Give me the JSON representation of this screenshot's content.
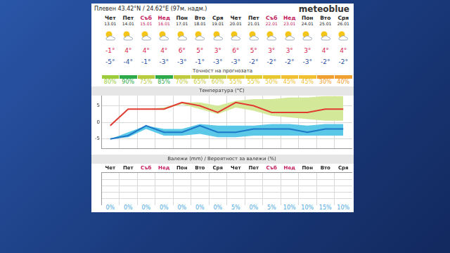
{
  "header": {
    "location": "Плевен 43.42°N / 24.62°E (97м. надм.)",
    "brand": "meteoblue"
  },
  "forecast_table": {
    "days": [
      "Чет",
      "Пет",
      "Съб",
      "Нед",
      "Пон",
      "Вто",
      "Сря",
      "Чет",
      "Пет",
      "Съб",
      "Нед",
      "Пон",
      "Вто",
      "Сря"
    ],
    "dates": [
      "13.01",
      "14.01",
      "15.01",
      "16.01",
      "17.01",
      "18.01",
      "19.01",
      "20.01",
      "21.01",
      "22.01",
      "23.01",
      "24.01",
      "25.01",
      "26.01"
    ],
    "weekend": [
      false,
      false,
      true,
      true,
      false,
      false,
      false,
      false,
      false,
      true,
      true,
      false,
      false,
      false
    ],
    "weekend_color": "#c2185b",
    "max_labels": [
      "-1°",
      "4°",
      "4°",
      "4°",
      "6°",
      "5°",
      "3°",
      "6°",
      "5°",
      "3°",
      "3°",
      "3°",
      "4°",
      "4°"
    ],
    "max_color": "#d9254f",
    "min_labels": [
      "-5°",
      "-4°",
      "-1°",
      "-3°",
      "-3°",
      "-1°",
      "-3°",
      "-3°",
      "-2°",
      "-2°",
      "-2°",
      "-3°",
      "-2°",
      "-2°"
    ],
    "min_color": "#2a4fa0",
    "accuracy_title": "Точност на прогнозата",
    "accuracy_labels": [
      "80%",
      "90%",
      "75%",
      "85%",
      "70%",
      "65%",
      "60%",
      "55%",
      "55%",
      "50%",
      "45%",
      "45%",
      "30%",
      "40%"
    ],
    "accuracy_colors": [
      "#9ccc3c",
      "#2eaa4a",
      "#b8cc40",
      "#2eaa4a",
      "#c0cc40",
      "#c8cc40",
      "#c8cc40",
      "#e0cc30",
      "#e0cc30",
      "#e8c830",
      "#f0c030",
      "#f0c030",
      "#f0a030",
      "#f0a030"
    ],
    "precipitation_probability_labels": [
      "0%",
      "0%",
      "0%",
      "0%",
      "0%",
      "0%",
      "0%",
      "5%",
      "0%",
      "5%",
      "10%",
      "10%",
      "15%",
      "10%"
    ],
    "probability_color": "#4aa8e0"
  },
  "chart_data": [
    {
      "type": "line",
      "title": "Температура (°C)",
      "categories": [
        "Чет",
        "Пет",
        "Съб",
        "Нед",
        "Пон",
        "Вто",
        "Сря",
        "Чет",
        "Пет",
        "Съб",
        "Нед",
        "Пон",
        "Вто",
        "Сря"
      ],
      "tick_labels": "y",
      "grid": true,
      "ylim": [
        -8,
        8
      ],
      "yticks": [
        -5,
        0,
        5
      ],
      "series": [
        {
          "type": "range",
          "color": "#d4e89a",
          "high": [
            -1,
            4,
            4,
            4.5,
            6,
            6,
            5,
            6.5,
            7,
            7,
            7.5,
            7.5,
            8,
            8
          ],
          "low": [
            -1,
            4,
            4,
            4,
            5.5,
            4,
            2.5,
            4.5,
            3.5,
            2,
            1.5,
            1,
            0.5,
            0.5
          ]
        },
        {
          "type": "line",
          "color": "#e03c31",
          "values": [
            -1,
            4,
            4,
            4,
            6,
            5,
            3,
            6,
            5,
            3,
            3,
            3,
            4,
            4
          ]
        },
        {
          "type": "range",
          "color": "#5cc8e8",
          "high": [
            -5,
            -3,
            -1,
            -2,
            -2,
            -0.5,
            -1,
            -1,
            -1,
            -0.5,
            -0.5,
            -1,
            -0.5,
            -0.5
          ],
          "low": [
            -5,
            -4.5,
            -2,
            -4,
            -4,
            -3.5,
            -4.5,
            -4.5,
            -4,
            -4,
            -4,
            -4,
            -4,
            -4
          ]
        },
        {
          "type": "line",
          "color": "#1e78c8",
          "values": [
            -5,
            -4,
            -1,
            -3,
            -3,
            -1,
            -3,
            -3,
            -2,
            -2,
            -2,
            -3,
            -2,
            -2
          ]
        }
      ]
    },
    {
      "type": "bar",
      "title": "Валежи (mm) / Вероятност за валежи (%)",
      "categories": [
        "Чет",
        "Пет",
        "Съб",
        "Нед",
        "Пон",
        "Вто",
        "Сря",
        "Чет",
        "Пет",
        "Съб",
        "Нед",
        "Пон",
        "Вто",
        "Сря"
      ],
      "values": [
        0,
        0,
        0,
        0,
        0,
        0,
        0,
        0,
        0,
        0,
        0,
        0,
        0,
        0
      ],
      "color": "#3d8fd6",
      "ylim": [
        0,
        5
      ],
      "tick_labels": "x",
      "grid": true
    }
  ]
}
